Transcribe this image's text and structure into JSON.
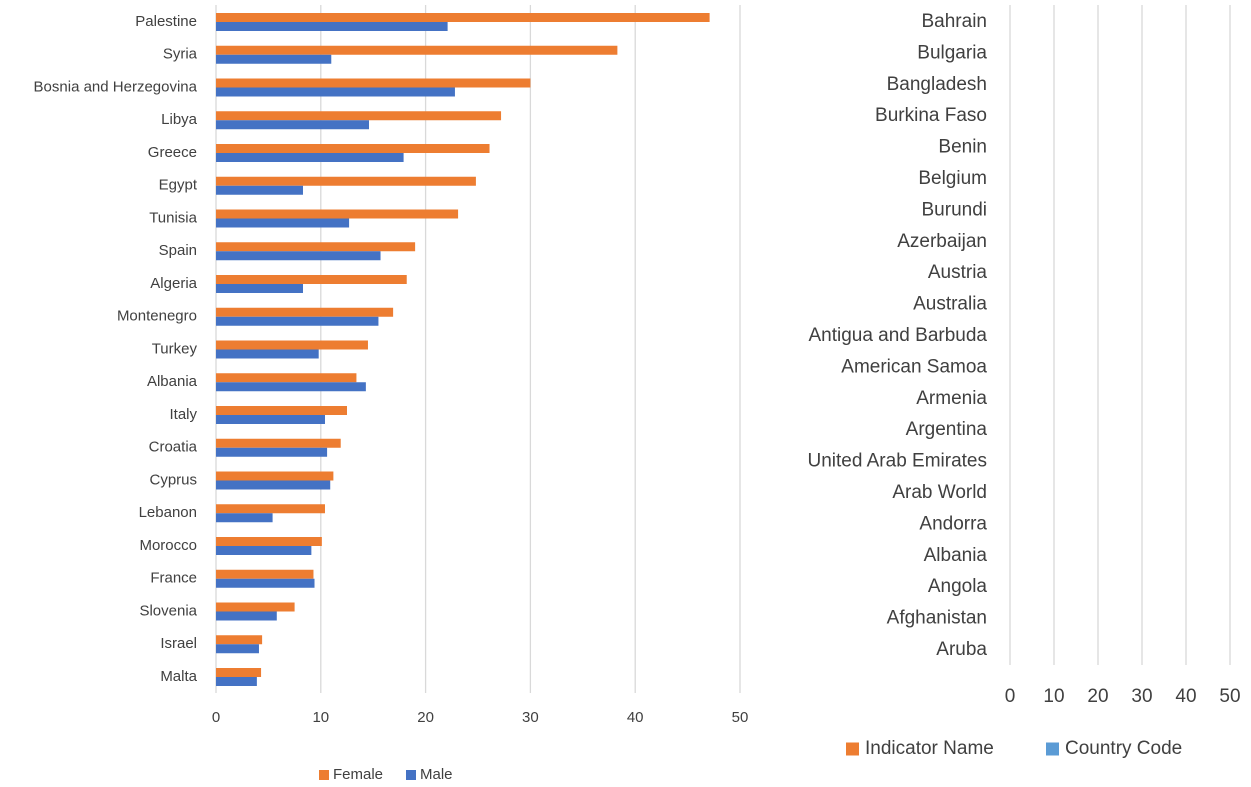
{
  "chart_data": [
    {
      "type": "bar",
      "orientation": "horizontal",
      "categories": [
        "Palestine",
        "Syria",
        "Bosnia and Herzegovina",
        "Libya",
        "Greece",
        "Egypt",
        "Tunisia",
        "Spain",
        "Algeria",
        "Montenegro",
        "Turkey",
        "Albania",
        "Italy",
        "Croatia",
        "Cyprus",
        "Lebanon",
        "Morocco",
        "France",
        "Slovenia",
        "Israel",
        "Malta"
      ],
      "series": [
        {
          "name": "Female",
          "color": "#ed7d31",
          "values": [
            47.1,
            38.3,
            30.0,
            27.2,
            26.1,
            24.8,
            23.1,
            19.0,
            18.2,
            16.9,
            14.5,
            13.4,
            12.5,
            11.9,
            11.2,
            10.4,
            10.1,
            9.3,
            7.5,
            4.4,
            4.3
          ]
        },
        {
          "name": "Male",
          "color": "#4472c4",
          "values": [
            22.1,
            11.0,
            22.8,
            14.6,
            17.9,
            8.3,
            12.7,
            15.7,
            8.3,
            15.5,
            9.8,
            14.3,
            10.4,
            10.6,
            10.9,
            5.4,
            9.1,
            9.4,
            5.8,
            4.1,
            3.9
          ]
        }
      ],
      "xlim": [
        0,
        50
      ],
      "xticks": [
        0,
        10,
        20,
        30,
        40,
        50
      ],
      "grid": true,
      "legend": "bottom"
    },
    {
      "type": "bar",
      "orientation": "horizontal",
      "categories": [
        "Bahrain",
        "Bulgaria",
        "Bangladesh",
        "Burkina Faso",
        "Benin",
        "Belgium",
        "Burundi",
        "Azerbaijan",
        "Austria",
        "Australia",
        "Antigua and Barbuda",
        "American Samoa",
        "Armenia",
        "Argentina",
        "United Arab Emirates",
        "Arab World",
        "Andorra",
        "Albania",
        "Angola",
        "Afghanistan",
        "Aruba"
      ],
      "series": [
        {
          "name": "Indicator Name",
          "color": "#ed7d31",
          "values": [
            null,
            null,
            null,
            null,
            null,
            null,
            null,
            null,
            null,
            null,
            null,
            null,
            null,
            null,
            null,
            null,
            null,
            null,
            null,
            null,
            null
          ]
        },
        {
          "name": "Country Code",
          "color": "#5b9bd5",
          "values": [
            null,
            null,
            null,
            null,
            null,
            null,
            null,
            null,
            null,
            null,
            null,
            null,
            null,
            null,
            null,
            null,
            null,
            null,
            null,
            null,
            null
          ]
        }
      ],
      "xlim": [
        0,
        50
      ],
      "xticks": [
        0,
        10,
        20,
        30,
        40,
        50
      ],
      "grid": true,
      "legend": "bottom"
    }
  ]
}
